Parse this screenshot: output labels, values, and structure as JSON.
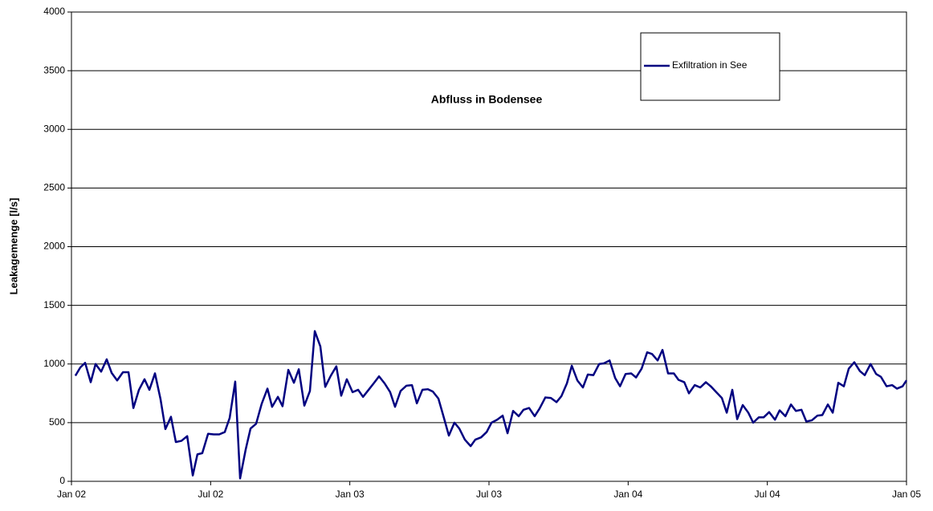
{
  "chart_data": {
    "type": "line",
    "title": "Abfluss in Bodensee",
    "ylabel": "Leakagemenge [l/s]",
    "x": [
      0.17,
      0.38,
      0.59,
      0.83,
      1.04,
      1.28,
      1.52,
      1.73,
      1.97,
      2.22,
      2.46,
      2.67,
      2.91,
      3.15,
      3.36,
      3.6,
      3.84,
      4.05,
      4.29,
      4.5,
      4.74,
      4.99,
      5.23,
      5.43,
      5.64,
      5.89,
      6.13,
      6.37,
      6.61,
      6.82,
      7.06,
      7.27,
      7.51,
      7.72,
      7.96,
      8.2,
      8.45,
      8.65,
      8.9,
      9.1,
      9.35,
      9.59,
      9.8,
      10.04,
      10.28,
      10.49,
      10.73,
      10.94,
      11.18,
      11.42,
      11.63,
      11.87,
      12.12,
      12.36,
      12.57,
      12.81,
      13.05,
      13.26,
      13.5,
      13.74,
      13.95,
      14.19,
      14.44,
      14.68,
      14.89,
      15.13,
      15.37,
      15.58,
      15.82,
      16.03,
      16.27,
      16.51,
      16.72,
      16.96,
      17.21,
      17.41,
      17.66,
      17.9,
      18.11,
      18.35,
      18.59,
      18.8,
      19.04,
      19.28,
      19.49,
      19.73,
      19.97,
      20.18,
      20.43,
      20.67,
      20.91,
      21.12,
      21.36,
      21.57,
      21.81,
      22.05,
      22.26,
      22.5,
      22.75,
      22.95,
      23.2,
      23.44,
      23.65,
      23.89,
      24.13,
      24.34,
      24.58,
      24.82,
      25.03,
      25.27,
      25.48,
      25.72,
      25.97,
      26.17,
      26.42,
      26.62,
      26.87,
      27.11,
      27.35,
      27.56,
      27.8,
      28.04,
      28.25,
      28.49,
      28.7,
      28.94,
      29.18,
      29.39,
      29.63,
      29.84,
      30.08,
      30.33,
      30.53,
      30.78,
      31.02,
      31.23,
      31.47,
      31.68,
      31.92,
      32.16,
      32.37,
      32.61,
      32.82,
      33.06,
      33.3,
      33.51,
      33.75,
      33.99,
      34.2,
      34.45,
      34.69,
      34.9,
      35.14,
      35.38,
      35.59,
      35.83,
      36.0
    ],
    "series": [
      {
        "name": "Exfiltration in See",
        "color": "#000080",
        "values": [
          900,
          970,
          1010,
          845,
          1000,
          935,
          1040,
          925,
          860,
          930,
          930,
          625,
          780,
          870,
          780,
          920,
          700,
          445,
          550,
          335,
          345,
          385,
          50,
          230,
          240,
          405,
          400,
          400,
          420,
          540,
          850,
          25,
          270,
          450,
          490,
          660,
          790,
          635,
          720,
          640,
          950,
          840,
          955,
          645,
          770,
          1280,
          1150,
          805,
          900,
          980,
          730,
          870,
          760,
          780,
          720,
          780,
          840,
          895,
          835,
          760,
          635,
          770,
          815,
          820,
          665,
          780,
          785,
          765,
          705,
          560,
          390,
          500,
          450,
          355,
          300,
          355,
          375,
          420,
          500,
          525,
          560,
          410,
          600,
          555,
          610,
          625,
          555,
          620,
          715,
          710,
          675,
          725,
          835,
          985,
          860,
          800,
          910,
          905,
          1000,
          1005,
          1030,
          880,
          810,
          915,
          920,
          885,
          960,
          1100,
          1085,
          1030,
          1120,
          920,
          920,
          865,
          845,
          750,
          820,
          800,
          845,
          810,
          760,
          710,
          585,
          780,
          530,
          650,
          585,
          500,
          545,
          545,
          590,
          525,
          605,
          555,
          655,
          600,
          610,
          510,
          520,
          560,
          565,
          655,
          585,
          840,
          810,
          960,
          1015,
          940,
          905,
          1000,
          915,
          890,
          810,
          820,
          790,
          810,
          860
        ]
      }
    ],
    "xlim": [
      0,
      36
    ],
    "xticks": [
      {
        "value": 0,
        "label": "Jan 02"
      },
      {
        "value": 6,
        "label": "Jul 02"
      },
      {
        "value": 12,
        "label": "Jan 03"
      },
      {
        "value": 18,
        "label": "Jul 03"
      },
      {
        "value": 24,
        "label": "Jan 04"
      },
      {
        "value": 30,
        "label": "Jul 04"
      },
      {
        "value": 36,
        "label": "Jan 05"
      }
    ],
    "ylim": [
      0,
      4000
    ],
    "yticks": [
      0,
      500,
      1000,
      1500,
      2000,
      2500,
      3000,
      3500,
      4000
    ],
    "grid": true,
    "legend": "top-right"
  }
}
